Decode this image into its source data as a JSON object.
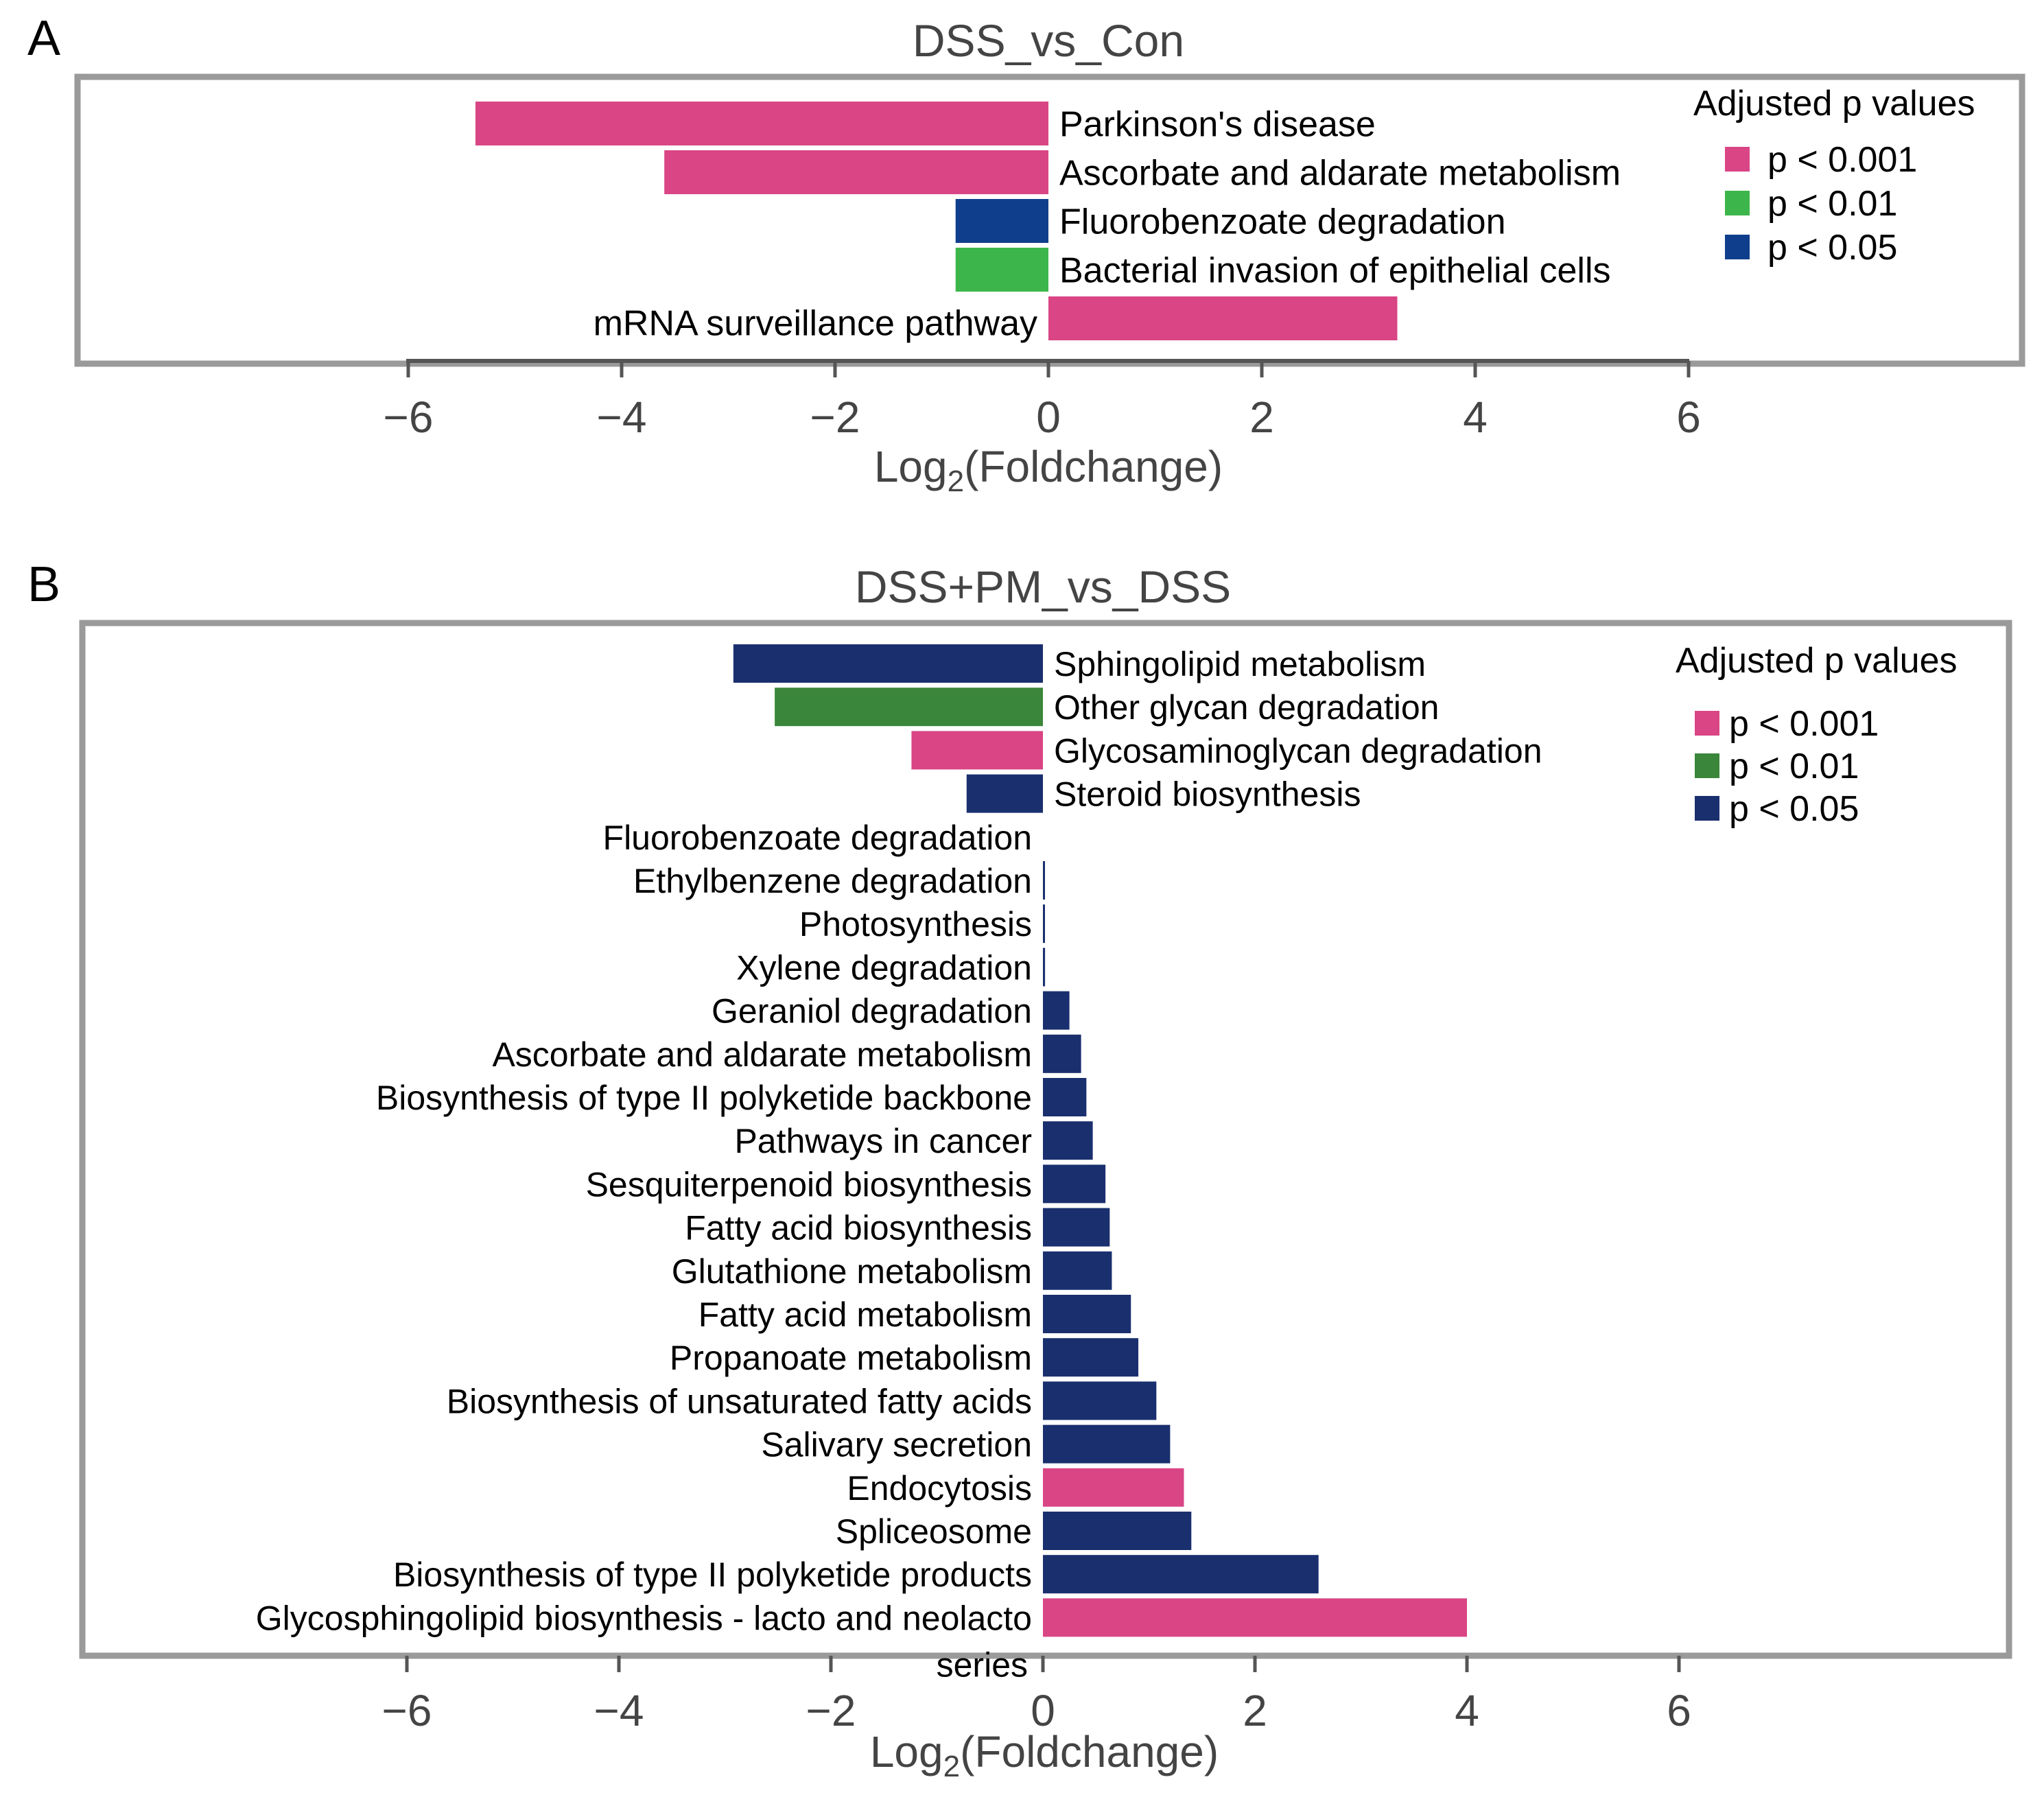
{
  "chart_data": [
    {
      "type": "bar",
      "orientation": "horizontal",
      "panel_label": "A",
      "title": "DSS_vs_Con",
      "xlabel_main": "Log",
      "xlabel_sub": "2",
      "xlabel_tail": "(Foldchange)",
      "xlim": [
        -6,
        6
      ],
      "xticks": [
        -6,
        -4,
        -2,
        0,
        2,
        4,
        6
      ],
      "xtick_labels": [
        "−6",
        "−4",
        "−2",
        "0",
        "2",
        "4",
        "6"
      ],
      "legend": {
        "title": "Adjusted p values",
        "position": "top-right",
        "entries": [
          {
            "key": "p001",
            "label": "p < 0.001",
            "color": "#d94585"
          },
          {
            "key": "p01",
            "label": "p < 0.01",
            "color": "#3cb64a"
          },
          {
            "key": "p05",
            "label": "p < 0.05",
            "color": "#0f3f8c"
          }
        ]
      },
      "categories": [
        {
          "label": "Parkinson's disease",
          "value": -5.37,
          "sig": "p001"
        },
        {
          "label": "Ascorbate and aldarate metabolism",
          "value": -3.6,
          "sig": "p001"
        },
        {
          "label": "Fluorobenzoate degradation",
          "value": -0.87,
          "sig": "p05"
        },
        {
          "label": "Bacterial invasion of epithelial cells",
          "value": -0.87,
          "sig": "p01"
        },
        {
          "label": "mRNA surveillance pathway",
          "value": 3.27,
          "sig": "p001"
        }
      ]
    },
    {
      "type": "bar",
      "orientation": "horizontal",
      "panel_label": "B",
      "title": "DSS+PM_vs_DSS",
      "xlabel_main": "Log",
      "xlabel_sub": "2",
      "xlabel_tail": "(Foldchange)",
      "xlim": [
        -6,
        6
      ],
      "xticks": [
        -6,
        -4,
        -2,
        0,
        2,
        4,
        6
      ],
      "xtick_labels": [
        "−6",
        "−4",
        "−2",
        "0",
        "2",
        "4",
        "6"
      ],
      "legend": {
        "title": "Adjusted p values",
        "position": "top-right",
        "entries": [
          {
            "key": "p001",
            "label": "p < 0.001",
            "color": "#d94585"
          },
          {
            "key": "p01",
            "label": "p < 0.01",
            "color": "#3a863a"
          },
          {
            "key": "p05",
            "label": "p < 0.05",
            "color": "#1a2f6e"
          }
        ]
      },
      "categories": [
        {
          "label": "Sphingolipid metabolism",
          "value": -2.92,
          "sig": "p05"
        },
        {
          "label": "Other glycan degradation",
          "value": -2.53,
          "sig": "p01"
        },
        {
          "label": "Glycosaminoglycan degradation",
          "value": -1.24,
          "sig": "p001"
        },
        {
          "label": "Steroid biosynthesis",
          "value": -0.72,
          "sig": "p05"
        },
        {
          "label": "Fluorobenzoate degradation",
          "value": 0.0,
          "sig": "p05"
        },
        {
          "label": "Ethylbenzene degradation",
          "value": 0.01,
          "sig": "p05"
        },
        {
          "label": "Photosynthesis",
          "value": 0.01,
          "sig": "p05"
        },
        {
          "label": "Xylene degradation",
          "value": 0.02,
          "sig": "p05"
        },
        {
          "label": "Geraniol degradation",
          "value": 0.25,
          "sig": "p05"
        },
        {
          "label": "Ascorbate and aldarate metabolism",
          "value": 0.36,
          "sig": "p05"
        },
        {
          "label": "Biosynthesis of type II polyketide backbone",
          "value": 0.41,
          "sig": "p05"
        },
        {
          "label": "Pathways in cancer",
          "value": 0.47,
          "sig": "p05"
        },
        {
          "label": "Sesquiterpenoid biosynthesis",
          "value": 0.59,
          "sig": "p05"
        },
        {
          "label": "Fatty acid biosynthesis",
          "value": 0.63,
          "sig": "p05"
        },
        {
          "label": "Glutathione metabolism",
          "value": 0.65,
          "sig": "p05"
        },
        {
          "label": "Fatty acid metabolism",
          "value": 0.83,
          "sig": "p05"
        },
        {
          "label": "Propanoate metabolism",
          "value": 0.9,
          "sig": "p05"
        },
        {
          "label": "Biosynthesis of unsaturated fatty acids",
          "value": 1.07,
          "sig": "p05"
        },
        {
          "label": "Salivary secretion",
          "value": 1.2,
          "sig": "p05"
        },
        {
          "label": "Endocytosis",
          "value": 1.33,
          "sig": "p001"
        },
        {
          "label": "Spliceosome",
          "value": 1.4,
          "sig": "p05"
        },
        {
          "label": "Biosynthesis of type II polyketide products",
          "value": 2.6,
          "sig": "p05"
        },
        {
          "label": "Glycosphingolipid biosynthesis - lacto and neolacto series",
          "value": 4.0,
          "sig": "p001"
        }
      ]
    }
  ]
}
